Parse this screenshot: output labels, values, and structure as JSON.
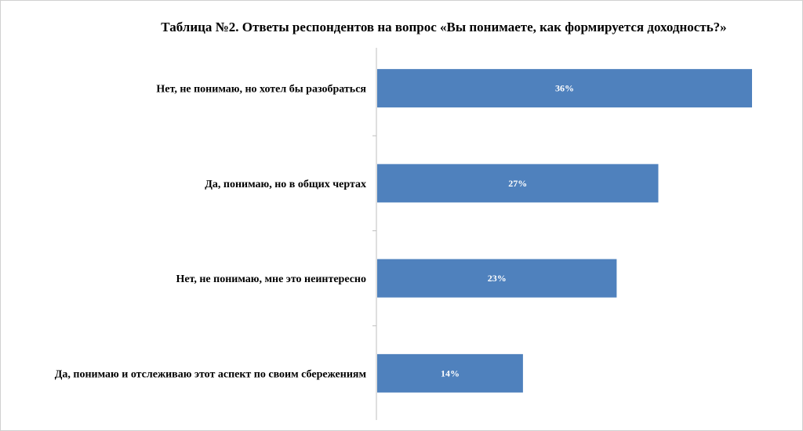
{
  "chart_data": {
    "type": "bar",
    "orientation": "horizontal",
    "title": "Таблица №2. Ответы респондентов на вопрос «Вы понимаете, как формируется доходность?»",
    "categories": [
      "Нет, не понимаю, но хотел бы разобраться",
      "Да, понимаю, но в общих чертах",
      "Нет, не понимаю, мне это неинтересно",
      "Да, понимаю и отслеживаю этот аспект по своим сбережениям"
    ],
    "values": [
      36,
      27,
      23,
      14
    ],
    "data_labels": [
      "36%",
      "27%",
      "23%",
      "14%"
    ],
    "xlim": [
      0,
      40
    ],
    "bar_color": "#4F81BD",
    "grid": false,
    "legend": "none"
  }
}
